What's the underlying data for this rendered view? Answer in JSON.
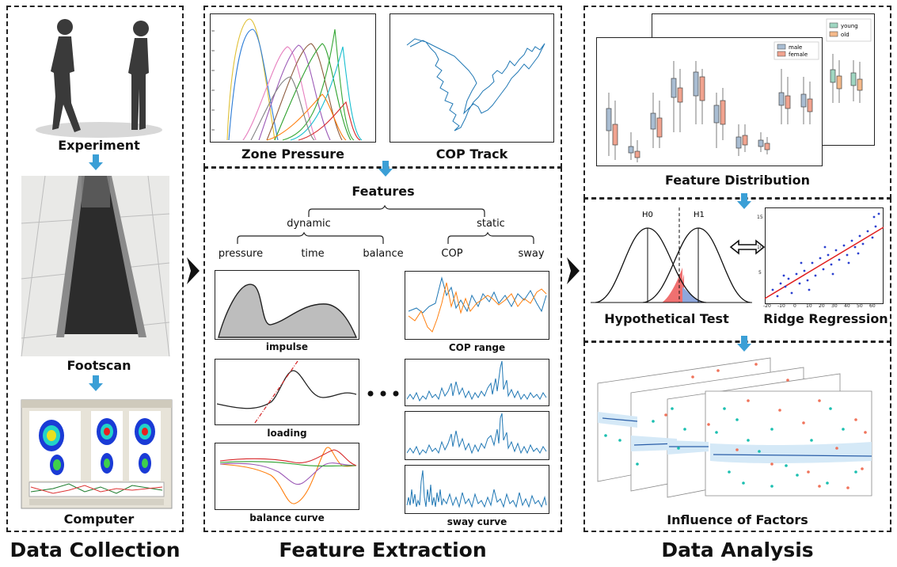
{
  "sections": {
    "collection": {
      "title": "Data Collection",
      "steps": [
        "Experiment",
        "Footscan",
        "Computer"
      ]
    },
    "extraction": {
      "title": "Feature Extraction",
      "top_plots": [
        "Zone Pressure",
        "COP Track"
      ],
      "root": "Features",
      "groups": [
        {
          "label": "dynamic",
          "items": [
            "pressure",
            "time",
            "balance"
          ]
        },
        {
          "label": "static",
          "items": [
            "COP",
            "sway"
          ]
        }
      ],
      "left_plots": [
        "impulse",
        "loading",
        "balance curve"
      ],
      "right_plots": [
        "COP range",
        "sway curve"
      ]
    },
    "analysis": {
      "title": "Data Analysis",
      "steps": [
        "Feature Distribution",
        "Hypothetical Test",
        "Ridge Regression",
        "Influence of Factors"
      ],
      "legend_back": [
        "young",
        "old"
      ],
      "legend_front": [
        "male",
        "female"
      ],
      "hypotheses": [
        "H0",
        "H1"
      ],
      "regression_xticks": [
        "-20",
        "-10",
        "0",
        "10",
        "20",
        "30",
        "40",
        "50",
        "60"
      ],
      "regression_yticks": [
        "5",
        "10",
        "15"
      ]
    }
  },
  "colors": {
    "arrow_blue": "#3b9fd6",
    "male_box": "#a9bdd2",
    "female_box": "#f1a38f",
    "young_box": "#9fd6c1",
    "old_box": "#f4b98a",
    "teal": "#1bbfb0",
    "salmon": "#f0735a"
  }
}
